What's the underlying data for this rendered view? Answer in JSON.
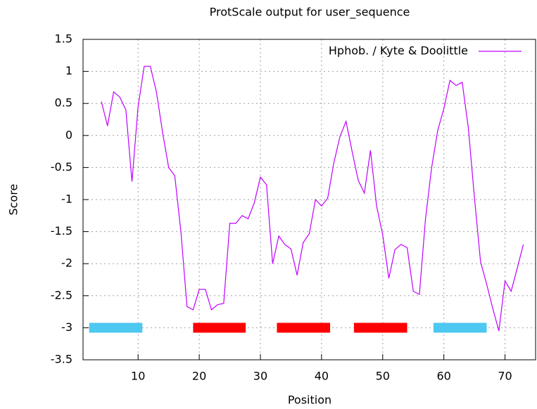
{
  "chart_data": {
    "type": "line",
    "title": "ProtScale output for user_sequence",
    "xlabel": "Position",
    "ylabel": "Score",
    "xlim": [
      1,
      75
    ],
    "ylim": [
      -3.5,
      1.5
    ],
    "xticks": [
      10,
      20,
      30,
      40,
      50,
      60,
      70
    ],
    "yticks": [
      -3.5,
      -3,
      -2.5,
      -2,
      -1.5,
      -1,
      -0.5,
      0,
      0.5,
      1,
      1.5
    ],
    "grid": true,
    "legend": "top-right",
    "x": [
      4,
      5,
      6,
      7,
      8,
      9,
      10,
      11,
      12,
      13,
      14,
      15,
      16,
      17,
      18,
      19,
      20,
      21,
      22,
      23,
      24,
      25,
      26,
      27,
      28,
      29,
      30,
      31,
      32,
      33,
      34,
      35,
      36,
      37,
      38,
      39,
      40,
      41,
      42,
      43,
      44,
      45,
      46,
      47,
      48,
      49,
      50,
      51,
      52,
      53,
      54,
      55,
      56,
      57,
      58,
      59,
      60,
      61,
      62,
      63,
      64,
      65,
      66,
      67,
      68,
      69,
      70,
      71,
      72,
      73
    ],
    "series": [
      {
        "name": "Hphob. / Kyte & Doolittle",
        "color": "#c000ff",
        "values": [
          0.53,
          0.15,
          0.68,
          0.6,
          0.4,
          -0.72,
          0.45,
          1.08,
          1.08,
          0.68,
          0.05,
          -0.5,
          -0.63,
          -1.5,
          -2.67,
          -2.72,
          -2.4,
          -2.4,
          -2.72,
          -2.64,
          -2.62,
          -1.37,
          -1.37,
          -1.25,
          -1.3,
          -1.05,
          -0.65,
          -0.77,
          -2.0,
          -1.57,
          -1.7,
          -1.77,
          -2.18,
          -1.67,
          -1.53,
          -1.0,
          -1.1,
          -0.98,
          -0.43,
          -0.02,
          0.22,
          -0.25,
          -0.7,
          -0.9,
          -0.23,
          -1.1,
          -1.55,
          -2.23,
          -1.78,
          -1.7,
          -1.75,
          -2.43,
          -2.48,
          -1.3,
          -0.5,
          0.08,
          0.42,
          0.86,
          0.78,
          0.83,
          0.12,
          -0.97,
          -1.97,
          -2.32,
          -2.7,
          -3.05,
          -2.27,
          -2.43,
          -2.07,
          -1.7
        ]
      }
    ],
    "regions": [
      {
        "start": 2.0,
        "end": 10.7,
        "y": -3,
        "color": "#4dc8f0"
      },
      {
        "start": 19.0,
        "end": 27.6,
        "y": -3,
        "color": "#ff0000"
      },
      {
        "start": 32.7,
        "end": 41.4,
        "y": -3,
        "color": "#ff0000"
      },
      {
        "start": 45.3,
        "end": 54.0,
        "y": -3,
        "color": "#ff0000"
      },
      {
        "start": 58.3,
        "end": 67.0,
        "y": -3,
        "color": "#4dc8f0"
      }
    ]
  }
}
